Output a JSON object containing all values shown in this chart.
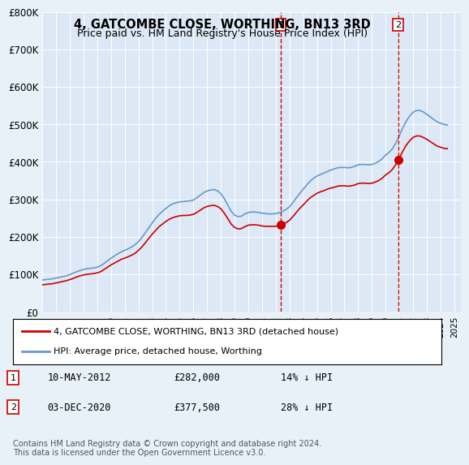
{
  "title": "4, GATCOMBE CLOSE, WORTHING, BN13 3RD",
  "subtitle": "Price paid vs. HM Land Registry's House Price Index (HPI)",
  "xlabel": "",
  "ylabel": "",
  "ylim": [
    0,
    800000
  ],
  "yticks": [
    0,
    100000,
    200000,
    300000,
    400000,
    500000,
    600000,
    700000,
    800000
  ],
  "ytick_labels": [
    "£0",
    "£100K",
    "£200K",
    "£300K",
    "£400K",
    "£500K",
    "£600K",
    "£700K",
    "£800K"
  ],
  "xmin": 1995.0,
  "xmax": 2025.5,
  "bg_color": "#e8f0f8",
  "plot_bg": "#dce8f5",
  "red_line_color": "#cc0000",
  "blue_line_color": "#6699cc",
  "vline_color": "#cc0000",
  "marker1_x": 2012.36,
  "marker2_x": 2020.92,
  "transaction1_date": "10-MAY-2012",
  "transaction1_price": "£282,000",
  "transaction1_hpi": "14% ↓ HPI",
  "transaction2_date": "03-DEC-2020",
  "transaction2_price": "£377,500",
  "transaction2_hpi": "28% ↓ HPI",
  "legend_label1": "4, GATCOMBE CLOSE, WORTHING, BN13 3RD (detached house)",
  "legend_label2": "HPI: Average price, detached house, Worthing",
  "copyright": "Contains HM Land Registry data © Crown copyright and database right 2024.\nThis data is licensed under the Open Government Licence v3.0.",
  "hpi_years": [
    1995,
    1995.25,
    1995.5,
    1995.75,
    1996,
    1996.25,
    1996.5,
    1996.75,
    1997,
    1997.25,
    1997.5,
    1997.75,
    1998,
    1998.25,
    1998.5,
    1998.75,
    1999,
    1999.25,
    1999.5,
    1999.75,
    2000,
    2000.25,
    2000.5,
    2000.75,
    2001,
    2001.25,
    2001.5,
    2001.75,
    2002,
    2002.25,
    2002.5,
    2002.75,
    2003,
    2003.25,
    2003.5,
    2003.75,
    2004,
    2004.25,
    2004.5,
    2004.75,
    2005,
    2005.25,
    2005.5,
    2005.75,
    2006,
    2006.25,
    2006.5,
    2006.75,
    2007,
    2007.25,
    2007.5,
    2007.75,
    2008,
    2008.25,
    2008.5,
    2008.75,
    2009,
    2009.25,
    2009.5,
    2009.75,
    2010,
    2010.25,
    2010.5,
    2010.75,
    2011,
    2011.25,
    2011.5,
    2011.75,
    2012,
    2012.25,
    2012.5,
    2012.75,
    2013,
    2013.25,
    2013.5,
    2013.75,
    2014,
    2014.25,
    2014.5,
    2014.75,
    2015,
    2015.25,
    2015.5,
    2015.75,
    2016,
    2016.25,
    2016.5,
    2016.75,
    2017,
    2017.25,
    2017.5,
    2017.75,
    2018,
    2018.25,
    2018.5,
    2018.75,
    2019,
    2019.25,
    2019.5,
    2019.75,
    2020,
    2020.25,
    2020.5,
    2020.75,
    2021,
    2021.25,
    2021.5,
    2021.75,
    2022,
    2022.25,
    2022.5,
    2022.75,
    2023,
    2023.25,
    2023.5,
    2023.75,
    2024,
    2024.25,
    2024.5
  ],
  "hpi_values": [
    85000,
    86000,
    87000,
    88000,
    90000,
    92000,
    94000,
    96000,
    99000,
    103000,
    107000,
    110000,
    113000,
    115000,
    116000,
    117000,
    119000,
    123000,
    129000,
    136000,
    143000,
    149000,
    155000,
    160000,
    164000,
    168000,
    173000,
    179000,
    187000,
    198000,
    211000,
    224000,
    237000,
    249000,
    260000,
    268000,
    276000,
    283000,
    288000,
    291000,
    293000,
    294000,
    295000,
    296000,
    298000,
    304000,
    311000,
    318000,
    322000,
    325000,
    326000,
    323000,
    315000,
    302000,
    285000,
    268000,
    258000,
    254000,
    255000,
    261000,
    265000,
    266000,
    266000,
    265000,
    263000,
    262000,
    261000,
    261000,
    262000,
    264000,
    268000,
    273000,
    280000,
    291000,
    304000,
    316000,
    327000,
    338000,
    348000,
    356000,
    362000,
    366000,
    370000,
    374000,
    378000,
    381000,
    384000,
    385000,
    385000,
    384000,
    385000,
    388000,
    392000,
    393000,
    393000,
    392000,
    393000,
    396000,
    401000,
    408000,
    418000,
    425000,
    435000,
    450000,
    470000,
    490000,
    508000,
    522000,
    532000,
    537000,
    537000,
    533000,
    527000,
    520000,
    513000,
    507000,
    503000,
    500000,
    498000
  ],
  "price_years": [
    1995,
    1995.25,
    1995.5,
    1995.75,
    1996,
    1996.25,
    1996.5,
    1996.75,
    1997,
    1997.25,
    1997.5,
    1997.75,
    1998,
    1998.25,
    1998.5,
    1998.75,
    1999,
    1999.25,
    1999.5,
    1999.75,
    2000,
    2000.25,
    2000.5,
    2000.75,
    2001,
    2001.25,
    2001.5,
    2001.75,
    2002,
    2002.25,
    2002.5,
    2002.75,
    2003,
    2003.25,
    2003.5,
    2003.75,
    2004,
    2004.25,
    2004.5,
    2004.75,
    2005,
    2005.25,
    2005.5,
    2005.75,
    2006,
    2006.25,
    2006.5,
    2006.75,
    2007,
    2007.25,
    2007.5,
    2007.75,
    2008,
    2008.25,
    2008.5,
    2008.75,
    2009,
    2009.25,
    2009.5,
    2009.75,
    2010,
    2010.25,
    2010.5,
    2010.75,
    2011,
    2011.25,
    2011.5,
    2011.75,
    2012,
    2012.25,
    2012.5,
    2012.75,
    2013,
    2013.25,
    2013.5,
    2013.75,
    2014,
    2014.25,
    2014.5,
    2014.75,
    2015,
    2015.25,
    2015.5,
    2015.75,
    2016,
    2016.25,
    2016.5,
    2016.75,
    2017,
    2017.25,
    2017.5,
    2017.75,
    2018,
    2018.25,
    2018.5,
    2018.75,
    2019,
    2019.25,
    2019.5,
    2019.75,
    2020,
    2020.25,
    2020.5,
    2020.75,
    2021,
    2021.25,
    2021.5,
    2021.75,
    2022,
    2022.25,
    2022.5,
    2022.75,
    2023,
    2023.25,
    2023.5,
    2023.75,
    2024,
    2024.25,
    2024.5
  ],
  "price_values": [
    72000,
    73000,
    74000,
    75000,
    77000,
    79000,
    81000,
    83000,
    86000,
    89000,
    93000,
    96000,
    98000,
    100000,
    101000,
    102000,
    104000,
    107000,
    113000,
    119000,
    125000,
    130000,
    135000,
    140000,
    143000,
    147000,
    151000,
    156000,
    164000,
    173000,
    184000,
    196000,
    207000,
    217000,
    227000,
    234000,
    241000,
    247000,
    251000,
    254000,
    256000,
    257000,
    257000,
    258000,
    260000,
    265000,
    271000,
    277000,
    281000,
    283000,
    284000,
    281000,
    275000,
    263000,
    249000,
    234000,
    225000,
    221000,
    222000,
    227000,
    231000,
    232000,
    232000,
    231000,
    229000,
    228000,
    228000,
    228000,
    228000,
    230000,
    234000,
    238000,
    244000,
    254000,
    265000,
    276000,
    285000,
    295000,
    304000,
    310000,
    316000,
    320000,
    323000,
    327000,
    330000,
    332000,
    335000,
    336000,
    336000,
    335000,
    336000,
    338000,
    342000,
    343000,
    343000,
    342000,
    343000,
    346000,
    350000,
    356000,
    365000,
    371000,
    380000,
    393000,
    410000,
    428000,
    444000,
    456000,
    465000,
    469000,
    469000,
    465000,
    460000,
    454000,
    448000,
    442000,
    439000,
    436000,
    435000
  ]
}
